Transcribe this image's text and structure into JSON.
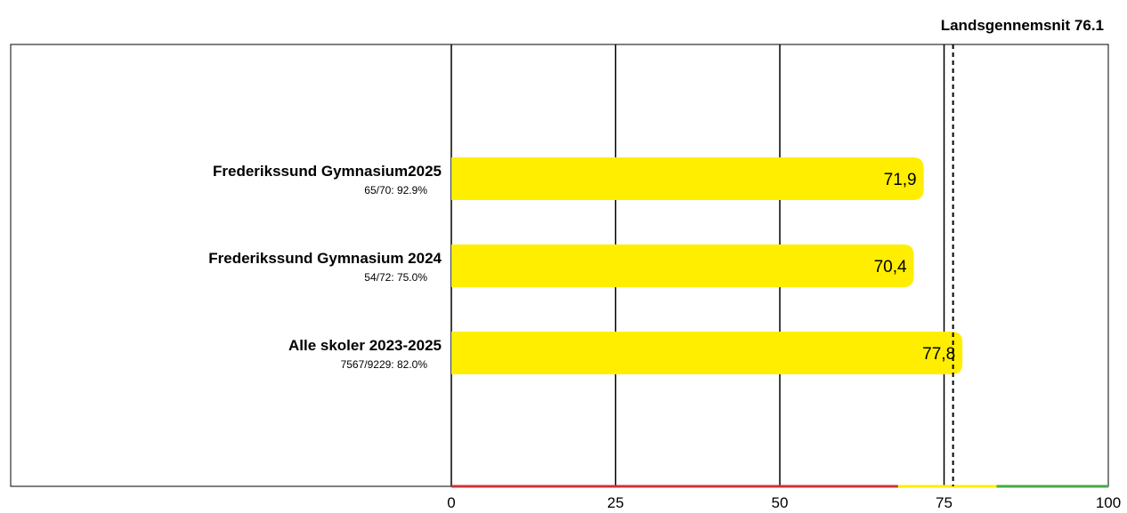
{
  "chart_data": {
    "type": "bar",
    "orientation": "horizontal",
    "categories": [
      "Frederikssund Gymnasium2025",
      "Frederikssund Gymnasium 2024",
      "Alle skoler 2023-2025"
    ],
    "sublabels": [
      "65/70: 92.9%",
      "54/72: 75.0%",
      "7567/9229: 82.0%"
    ],
    "values": [
      71.9,
      70.4,
      77.8
    ],
    "value_labels": [
      "71,9",
      "70,4",
      "77,8"
    ],
    "xlim": [
      0,
      100
    ],
    "xticks": [
      0,
      25,
      50,
      75,
      100
    ],
    "xtick_labels": [
      "0",
      "25",
      "50",
      "75",
      "100"
    ],
    "grid": true,
    "bar_color": "#ffee00",
    "reference_line": {
      "label": "Landsgennemsnit 76.1",
      "value": 76.1,
      "style": "dashed"
    },
    "axis_bands": [
      {
        "from": 0,
        "to": 68,
        "color": "#cc3333"
      },
      {
        "from": 68,
        "to": 83,
        "color": "#ffee00"
      },
      {
        "from": 83,
        "to": 100,
        "color": "#44aa44"
      }
    ]
  }
}
